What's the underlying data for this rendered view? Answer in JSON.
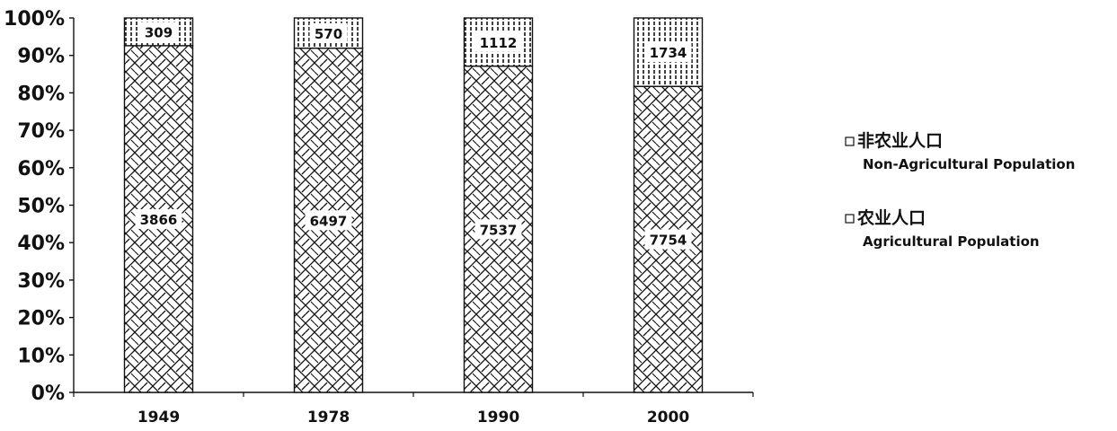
{
  "chart_data": {
    "type": "bar",
    "stacked": "percent",
    "categories": [
      "1949",
      "1978",
      "1990",
      "2000"
    ],
    "series": [
      {
        "name": "农业人口 Agricultural Population",
        "name_cn": "农业人口",
        "name_en": "Agricultural Population",
        "values": [
          3866,
          6497,
          7537,
          7754
        ],
        "pattern": "cross-hatch"
      },
      {
        "name": "非农业人口 Non-Agricultural Population",
        "name_cn": "非农业人口",
        "name_en": "Non-Agricultural Population",
        "values": [
          309,
          570,
          1112,
          1734
        ],
        "pattern": "vertical-stripes"
      }
    ],
    "y_ticks": [
      "0%",
      "10%",
      "20%",
      "30%",
      "40%",
      "50%",
      "60%",
      "70%",
      "80%",
      "90%",
      "100%"
    ],
    "ylim": [
      0,
      100
    ],
    "legend_position": "right",
    "grid": false
  }
}
